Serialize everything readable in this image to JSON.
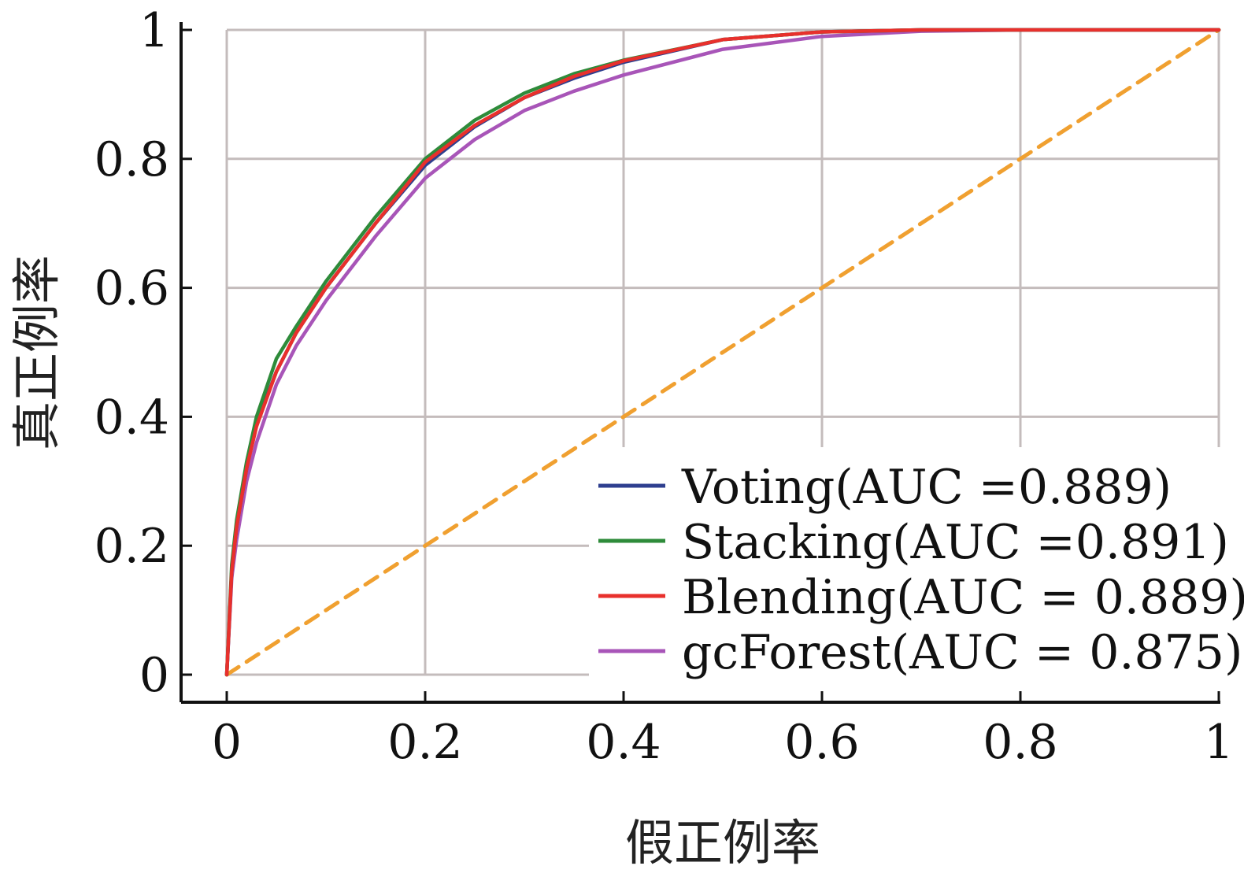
{
  "chart_data": {
    "type": "line",
    "title": "",
    "xlabel": "假正例率",
    "ylabel": "真正例率",
    "xlim": [
      0,
      1
    ],
    "ylim": [
      0,
      1
    ],
    "grid": true,
    "legend_position": "bottom-right",
    "x_ticks": [
      "0",
      "0.2",
      "0.4",
      "0.6",
      "0.8",
      "1"
    ],
    "y_ticks": [
      "0",
      "0.2",
      "0.4",
      "0.6",
      "0.8",
      "1"
    ],
    "series": [
      {
        "name": "Voting(AUC =0.889)",
        "color": "#2e3f8f",
        "style": "solid",
        "x": [
          0,
          0.005,
          0.01,
          0.02,
          0.03,
          0.05,
          0.07,
          0.1,
          0.12,
          0.15,
          0.2,
          0.25,
          0.3,
          0.35,
          0.4,
          0.5,
          0.6,
          0.7,
          0.8,
          1
        ],
        "y": [
          0,
          0.16,
          0.23,
          0.32,
          0.39,
          0.47,
          0.53,
          0.6,
          0.64,
          0.7,
          0.79,
          0.85,
          0.895,
          0.925,
          0.95,
          0.985,
          0.997,
          1,
          1,
          1
        ]
      },
      {
        "name": "Stacking(AUC =0.891)",
        "color": "#2e8b3a",
        "style": "solid",
        "x": [
          0,
          0.005,
          0.01,
          0.02,
          0.03,
          0.05,
          0.07,
          0.1,
          0.12,
          0.15,
          0.2,
          0.25,
          0.3,
          0.35,
          0.4,
          0.5,
          0.6,
          0.7,
          0.8,
          1
        ],
        "y": [
          0,
          0.17,
          0.24,
          0.33,
          0.4,
          0.49,
          0.54,
          0.61,
          0.65,
          0.71,
          0.8,
          0.86,
          0.902,
          0.932,
          0.953,
          0.985,
          0.997,
          1,
          1,
          1
        ]
      },
      {
        "name": "Blending(AUC = 0.889)",
        "color": "#e8302c",
        "style": "solid",
        "x": [
          0,
          0.005,
          0.01,
          0.02,
          0.03,
          0.05,
          0.07,
          0.1,
          0.12,
          0.15,
          0.2,
          0.25,
          0.3,
          0.35,
          0.4,
          0.5,
          0.6,
          0.7,
          0.8,
          1
        ],
        "y": [
          0,
          0.16,
          0.23,
          0.32,
          0.385,
          0.47,
          0.53,
          0.6,
          0.64,
          0.7,
          0.795,
          0.852,
          0.895,
          0.928,
          0.952,
          0.985,
          0.997,
          1,
          1,
          1
        ]
      },
      {
        "name": "gcForest(AUC = 0.875)",
        "color": "#a855b8",
        "style": "solid",
        "x": [
          0,
          0.005,
          0.01,
          0.02,
          0.03,
          0.05,
          0.07,
          0.1,
          0.12,
          0.15,
          0.2,
          0.25,
          0.3,
          0.35,
          0.4,
          0.5,
          0.6,
          0.7,
          0.8,
          1
        ],
        "y": [
          0,
          0.15,
          0.21,
          0.3,
          0.36,
          0.45,
          0.51,
          0.58,
          0.62,
          0.68,
          0.77,
          0.83,
          0.875,
          0.905,
          0.93,
          0.97,
          0.99,
          0.998,
          1,
          1
        ]
      },
      {
        "name": "",
        "color": "#f0a030",
        "style": "dashed",
        "x": [
          0,
          1
        ],
        "y": [
          0,
          1
        ]
      }
    ]
  }
}
